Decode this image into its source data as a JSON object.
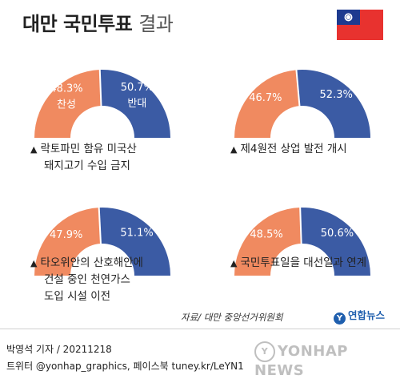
{
  "header": {
    "title_bold": "대만 국민투표",
    "title_light": "결과"
  },
  "colors": {
    "approve": "#f08a60",
    "oppose": "#3b5ba4",
    "flag_red": "#e8322f",
    "flag_blue": "#1d3a8f",
    "brand": "#1f5fae"
  },
  "chart_data": [
    {
      "type": "pie",
      "shape": "half-donut",
      "categories": [
        "찬성",
        "반대"
      ],
      "values": [
        48.3,
        50.7
      ],
      "value_labels": [
        "48.3%",
        "50.7%"
      ],
      "caption_lines": [
        "락토파민 함유 미국산",
        "돼지고기 수입 금지"
      ]
    },
    {
      "type": "pie",
      "shape": "half-donut",
      "categories": [
        "",
        ""
      ],
      "values": [
        46.7,
        52.3
      ],
      "value_labels": [
        "46.7%",
        "52.3%"
      ],
      "caption_lines": [
        "제4원전 상업 발전 개시"
      ]
    },
    {
      "type": "pie",
      "shape": "half-donut",
      "categories": [
        "",
        ""
      ],
      "values": [
        47.9,
        51.1
      ],
      "value_labels": [
        "47.9%",
        "51.1%"
      ],
      "caption_lines": [
        "타오위안의 산호해안에",
        "건설 중인 천연가스",
        "도입 시설 이전"
      ]
    },
    {
      "type": "pie",
      "shape": "half-donut",
      "categories": [
        "",
        ""
      ],
      "values": [
        48.5,
        50.6
      ],
      "value_labels": [
        "48.5%",
        "50.6%"
      ],
      "caption_lines": [
        "국민투표일을 대선일과 연계"
      ]
    }
  ],
  "caption_marker": "▲",
  "footer": {
    "source": "자료/ 대만 중앙선거위원회",
    "brand": "연합뉴스",
    "credit": "박영석 기자 / 20211218",
    "sns": "트위터 @yonhap_graphics, 페이스북 tuney.kr/LeYN1",
    "watermark": "YONHAP NEWS"
  }
}
